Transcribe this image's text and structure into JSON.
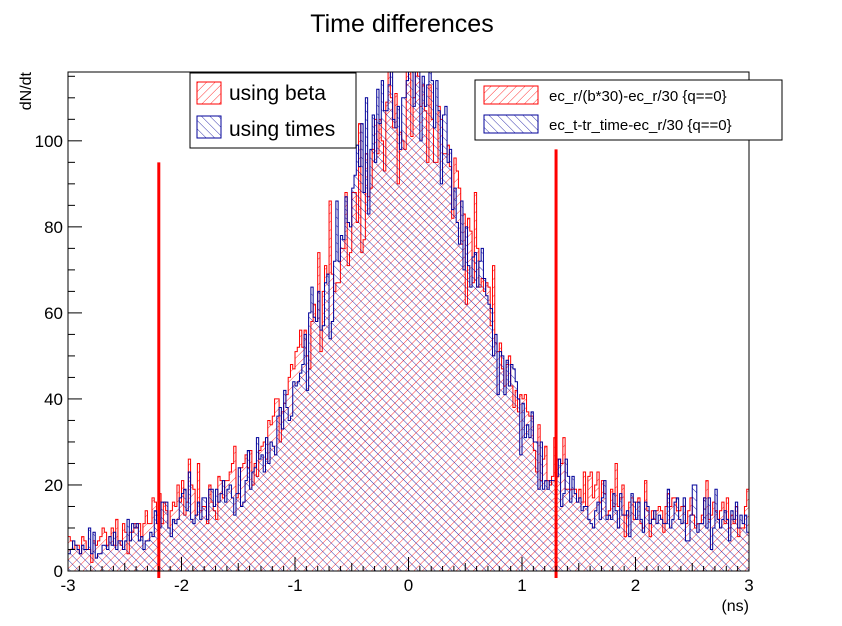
{
  "chart_data": {
    "type": "histogram",
    "title": "Time differences",
    "xlabel": "(ns)",
    "ylabel": "dN/dt",
    "xlim": [
      -3,
      3
    ],
    "ylim": [
      0,
      116
    ],
    "x_ticks": [
      -3,
      -2,
      -1,
      0,
      1,
      2,
      3
    ],
    "y_ticks": [
      0,
      20,
      40,
      60,
      80,
      100
    ],
    "x_tick_labels": [
      "-3",
      "-2",
      "-1",
      "0",
      "1",
      "2",
      "3"
    ],
    "y_tick_labels": [
      "0",
      "20",
      "40",
      "60",
      "80",
      "100"
    ],
    "bin_width": 0.02,
    "cut_lines": {
      "x": [
        -2.2,
        1.3
      ],
      "y_top": [
        95,
        98
      ],
      "color": "#ff0000"
    },
    "series": [
      {
        "color": "#ff0000",
        "hatch": "diagonal-forward",
        "profile": {
          "peak": 93,
          "center": 0,
          "sigma_left": 0.65,
          "sigma_right": 0.6,
          "tail": 16
        }
      },
      {
        "color": "#000099",
        "hatch": "diagonal-back",
        "profile": {
          "peak": 97,
          "center": 0,
          "sigma_left": 0.62,
          "sigma_right": 0.58,
          "tail": 14
        }
      }
    ],
    "legend_left": {
      "entries": [
        {
          "label": "using beta",
          "color": "#ff0000",
          "hatch": "diagonal-forward"
        },
        {
          "label": "using times",
          "color": "#000099",
          "hatch": "diagonal-back"
        }
      ]
    },
    "legend_right": {
      "entries": [
        {
          "label": "ec_r/(b*30)-ec_r/30 {q==0}",
          "color": "#ff0000",
          "hatch": "diagonal-forward"
        },
        {
          "label": "ec_t-tr_time-ec_r/30 {q==0}",
          "color": "#000099",
          "hatch": "diagonal-back"
        }
      ]
    }
  }
}
